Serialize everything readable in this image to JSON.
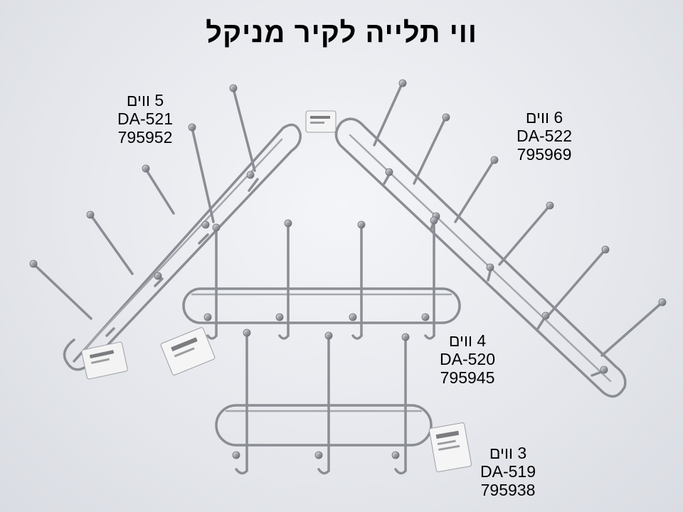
{
  "title": "ווי תלייה לקיר מניקל",
  "products": [
    {
      "id": "hanger-5",
      "hooks": "5 ווים",
      "model": "DA-521",
      "barcode": "795952"
    },
    {
      "id": "hanger-6",
      "hooks": "6 ווים",
      "model": "DA-522",
      "barcode": "795969"
    },
    {
      "id": "hanger-4",
      "hooks": "4 ווים",
      "model": "DA-520",
      "barcode": "795945"
    },
    {
      "id": "hanger-3",
      "hooks": "3 ווים",
      "model": "DA-519",
      "barcode": "795938"
    }
  ]
}
